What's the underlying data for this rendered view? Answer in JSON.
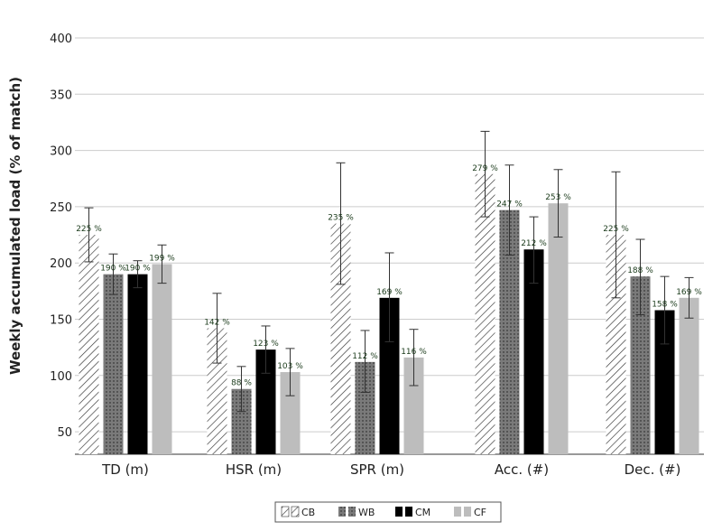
{
  "chart_data": {
    "type": "bar",
    "title": "",
    "ylabel": "Weekly accumulated load (% of match)",
    "xlabel": "",
    "ylim": [
      30,
      400
    ],
    "yticks": [
      50,
      100,
      150,
      200,
      250,
      300,
      350,
      400
    ],
    "grid": true,
    "legend_position": "bottom-center",
    "categories": [
      "TD (m)",
      "HSR (m)",
      "SPR (m)",
      "Acc. (#)",
      "Dec. (#)"
    ],
    "series": [
      {
        "name": "CB",
        "pattern": "diagonal-hatch",
        "values": [
          225,
          142,
          235,
          279,
          225
        ],
        "labels": [
          "225 %",
          "142 %",
          "235 %",
          "279 %",
          "225 %"
        ],
        "error_low": [
          201,
          111,
          181,
          241,
          169
        ],
        "error_high": [
          249,
          173,
          289,
          317,
          281
        ]
      },
      {
        "name": "WB",
        "pattern": "dotted-gray",
        "values": [
          190,
          88,
          112,
          247,
          188
        ],
        "labels": [
          "190 %",
          "88 %",
          "112 %",
          "247 %",
          "188 %"
        ],
        "error_low": [
          172,
          68,
          85,
          207,
          154
        ],
        "error_high": [
          208,
          108,
          140,
          287,
          221
        ]
      },
      {
        "name": "CM",
        "pattern": "solid-black",
        "values": [
          190,
          123,
          169,
          212,
          158
        ],
        "labels": [
          "190 %",
          "123 %",
          "169 %",
          "212 %",
          "158 %"
        ],
        "error_low": [
          178,
          102,
          130,
          182,
          128
        ],
        "error_high": [
          202,
          144,
          209,
          241,
          188
        ]
      },
      {
        "name": "CF",
        "pattern": "solid-light-gray",
        "values": [
          199,
          103,
          116,
          253,
          169
        ],
        "labels": [
          "199 %",
          "103 %",
          "116 %",
          "253 %",
          "169 %"
        ],
        "error_low": [
          182,
          82,
          91,
          223,
          151
        ],
        "error_high": [
          216,
          124,
          141,
          283,
          187
        ]
      }
    ]
  },
  "colors": {
    "grid": "#cccccc",
    "axis": "#333333",
    "label_text": "#1a3a1a",
    "wb_fill": "#7a7a7a",
    "cm_fill": "#000000",
    "cf_fill": "#bdbdbd"
  }
}
